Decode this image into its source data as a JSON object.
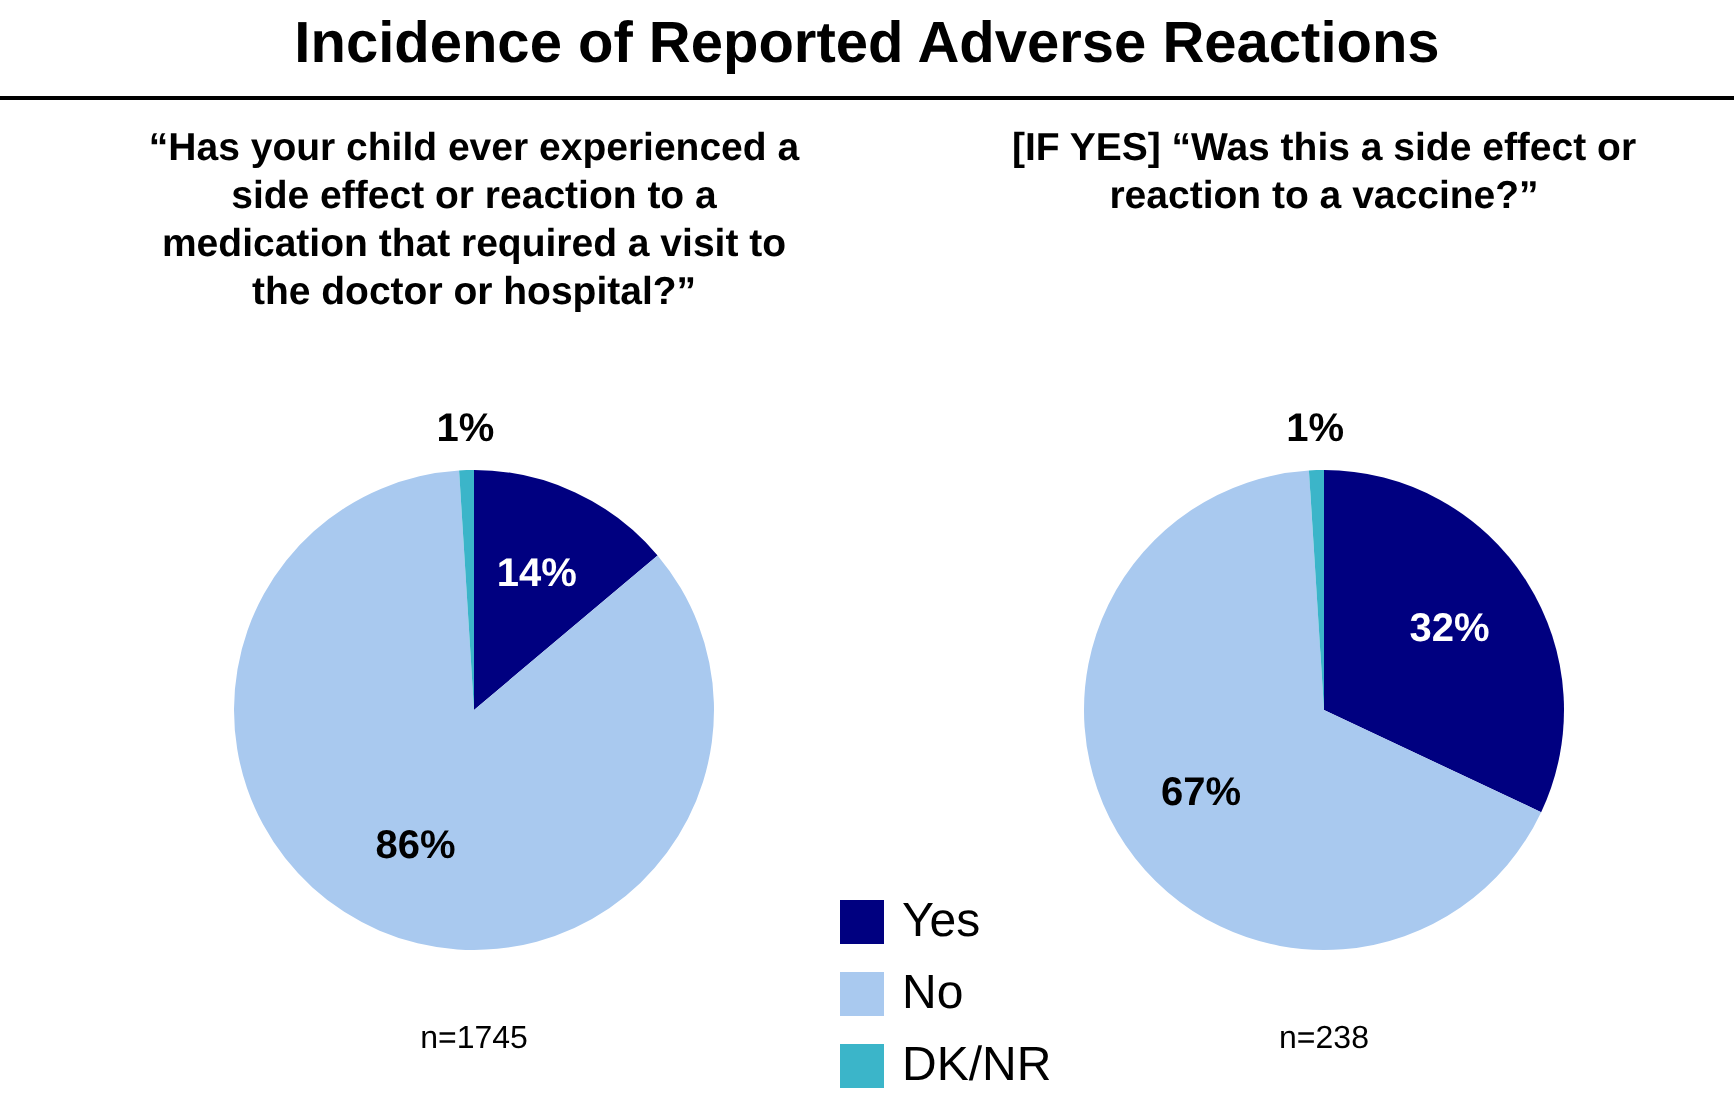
{
  "chart_data": [
    {
      "type": "pie",
      "title": "Incidence of Reported Adverse Reactions",
      "subtitle": "“Has your child ever experienced a side effect or reaction to a medication that required a visit to the doctor or hospital?”",
      "categories": [
        "Yes",
        "No",
        "DK/NR"
      ],
      "values": [
        14,
        86,
        1
      ],
      "colors": [
        "#000080",
        "#a9c9ef",
        "#3bb5c9"
      ],
      "value_labels": [
        "14%",
        "86%",
        "1%"
      ],
      "legend": "bottom right",
      "annotations": [
        "n=1745"
      ]
    },
    {
      "type": "pie",
      "subtitle": "[IF YES] “Was this a side effect or reaction to a vaccine?”",
      "categories": [
        null,
        null,
        null
      ],
      "values": [
        32,
        67,
        1
      ],
      "colors": [
        "#000080",
        "#a9c9ef",
        "#3bb5c9"
      ],
      "value_labels": [
        "32%",
        "67%",
        "1%"
      ],
      "annotations": [
        "n=238"
      ]
    }
  ]
}
